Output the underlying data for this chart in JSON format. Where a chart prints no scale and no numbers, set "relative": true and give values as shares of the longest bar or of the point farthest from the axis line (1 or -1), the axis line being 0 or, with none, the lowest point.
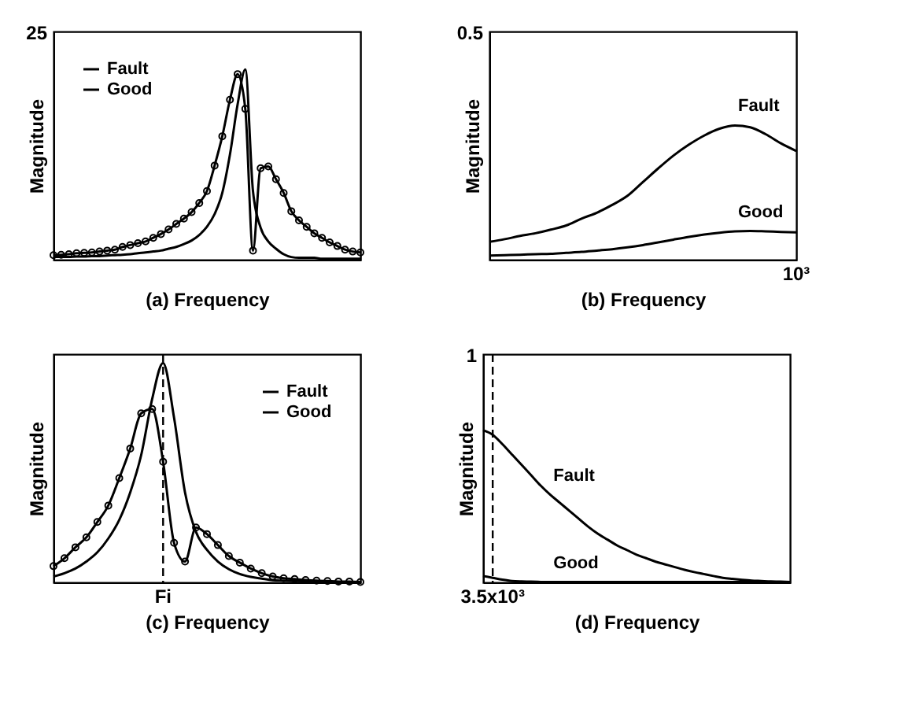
{
  "chart_data": [
    {
      "type": "line",
      "xlabel": "(a)  Frequency",
      "ylabel": "Magnitude",
      "legend": "top left",
      "relative": true,
      "annotations": [
        "25"
      ],
      "categories": [
        null,
        null,
        null,
        null,
        null,
        null,
        null,
        null,
        null,
        null,
        null,
        null,
        null,
        null,
        null,
        null,
        null,
        null,
        null,
        null,
        null,
        null,
        null,
        null,
        null,
        null,
        null,
        null,
        null,
        null,
        null,
        null,
        null,
        null,
        null,
        null,
        null,
        null,
        null,
        null,
        null
      ],
      "series": [
        {
          "name": "Fault",
          "color": "#000000",
          "marker": "circle",
          "values": [
            0.024,
            0.026,
            0.029,
            0.034,
            0.036,
            0.038,
            0.043,
            0.048,
            0.053,
            0.067,
            0.077,
            0.087,
            0.096,
            0.115,
            0.135,
            0.159,
            0.188,
            0.216,
            0.25,
            0.298,
            0.361,
            0.495,
            0.649,
            0.841,
            0.976,
            0.793,
            0.048,
            0.481,
            0.49,
            0.423,
            0.351,
            0.255,
            0.207,
            0.173,
            0.139,
            0.115,
            0.091,
            0.072,
            0.053,
            0.043,
            0.038
          ]
        },
        {
          "name": "Good",
          "color": "#000000",
          "values": [
            0.014,
            0.014,
            0.014,
            0.017,
            0.017,
            0.019,
            0.019,
            0.022,
            0.024,
            0.026,
            0.029,
            0.034,
            0.038,
            0.043,
            0.048,
            0.058,
            0.067,
            0.082,
            0.101,
            0.13,
            0.173,
            0.24,
            0.351,
            0.553,
            0.817,
            1,
            0.361,
            0.168,
            0.096,
            0.058,
            0.029,
            0.014,
            0.01,
            0.01,
            0.01,
            0.005,
            0.005,
            0.005,
            0.005,
            0.005,
            0.005
          ]
        }
      ]
    },
    {
      "type": "line",
      "xlabel": "(b)  Frequency",
      "ylabel": "Magnitude",
      "legend": false,
      "relative": true,
      "annotations": [
        "0.5",
        "10³"
      ],
      "categories": [
        null,
        null,
        null,
        null,
        null,
        null,
        null,
        null,
        null,
        null,
        null,
        null,
        null,
        null,
        null,
        null,
        null,
        null,
        null,
        null,
        null
      ],
      "series": [
        {
          "name": "Fault",
          "color": "#000000",
          "values": [
            0.133,
            0.153,
            0.177,
            0.197,
            0.224,
            0.255,
            0.306,
            0.35,
            0.408,
            0.476,
            0.578,
            0.68,
            0.776,
            0.857,
            0.925,
            0.976,
            1,
            0.986,
            0.935,
            0.867,
            0.81
          ]
        },
        {
          "name": "Good",
          "color": "#000000",
          "values": [
            0.031,
            0.034,
            0.037,
            0.041,
            0.044,
            0.051,
            0.058,
            0.068,
            0.078,
            0.092,
            0.109,
            0.129,
            0.15,
            0.17,
            0.187,
            0.201,
            0.211,
            0.214,
            0.211,
            0.207,
            0.204
          ]
        }
      ]
    },
    {
      "type": "line",
      "xlabel": "(c)  Frequency",
      "ylabel": "Magnitude",
      "legend": "top right",
      "relative": true,
      "annotations": [
        "Fi"
      ],
      "categories": [
        null,
        null,
        null,
        null,
        null,
        null,
        null,
        null,
        null,
        null,
        null,
        null,
        null,
        null,
        null,
        null,
        null,
        null,
        null,
        null,
        null,
        null,
        null,
        null,
        null,
        null,
        null,
        null,
        null
      ],
      "series": [
        {
          "name": "Fault",
          "color": "#000000",
          "marker": "circle",
          "values": [
            0.074,
            0.11,
            0.16,
            0.205,
            0.275,
            0.35,
            0.475,
            0.61,
            0.77,
            0.79,
            0.55,
            0.18,
            0.095,
            0.25,
            0.22,
            0.17,
            0.12,
            0.09,
            0.063,
            0.042,
            0.027,
            0.019,
            0.015,
            0.011,
            0.008,
            0.006,
            0.004,
            0.004,
            0.002
          ]
        },
        {
          "name": "Good",
          "color": "#000000",
          "values": [
            0.027,
            0.042,
            0.063,
            0.095,
            0.137,
            0.2,
            0.285,
            0.41,
            0.58,
            0.835,
            1,
            0.75,
            0.41,
            0.23,
            0.148,
            0.095,
            0.06,
            0.038,
            0.025,
            0.017,
            0.01,
            0.008,
            0.006,
            0.005,
            0.004,
            0.003,
            0.002,
            0.002,
            0.002
          ]
        }
      ]
    },
    {
      "type": "line",
      "xlabel": "(d)  Frequency",
      "ylabel": "Magnitude",
      "legend": false,
      "relative": true,
      "annotations": [
        "1",
        "3.5x10³"
      ],
      "categories": [
        null,
        null,
        null,
        null,
        null,
        null,
        null,
        null,
        null,
        null,
        null,
        null,
        null,
        null,
        null,
        null,
        null,
        null,
        null,
        null,
        null,
        null,
        null,
        null,
        null,
        null,
        null,
        null,
        null,
        null,
        null,
        null,
        null
      ],
      "series": [
        {
          "name": "Fault",
          "color": "#000000",
          "values": [
            1,
            0.97,
            0.909,
            0.841,
            0.773,
            0.705,
            0.636,
            0.576,
            0.523,
            0.47,
            0.417,
            0.364,
            0.318,
            0.28,
            0.242,
            0.212,
            0.182,
            0.159,
            0.136,
            0.118,
            0.1,
            0.083,
            0.068,
            0.055,
            0.042,
            0.03,
            0.023,
            0.017,
            0.012,
            0.009,
            0.006,
            0.005,
            0.003
          ]
        },
        {
          "name": "Good",
          "color": "#000000",
          "values": [
            0.042,
            0.03,
            0.018,
            0.009,
            0.006,
            0.005,
            0.003,
            0.002,
            0.002,
            0.002,
            0.002,
            0.002,
            0.002,
            0.002,
            0.002,
            0.002,
            0.002,
            0.002,
            0.002,
            0.002,
            0.002,
            0.002,
            0.002,
            0.002,
            0.002,
            0.002,
            0.002,
            0.002,
            0.002,
            0.002,
            0.002,
            0.002,
            0.002
          ]
        }
      ]
    }
  ]
}
